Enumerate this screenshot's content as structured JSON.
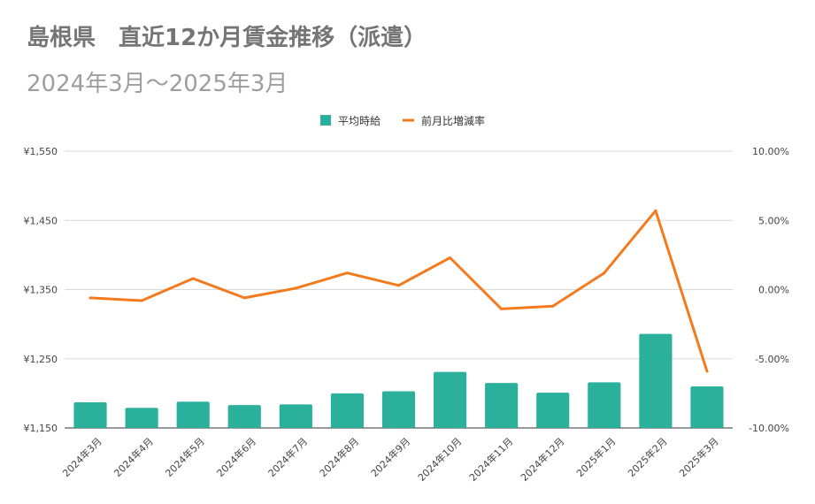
{
  "title": "島根県　直近12か月賃金推移（派遣）",
  "subtitle": "2024年3月～2025年3月",
  "colors": {
    "bar": "#2bb09c",
    "line": "#f37b1d",
    "grid": "#d9d9d9"
  },
  "chart_data": {
    "type": "bar+line",
    "categories": [
      "2024年3月",
      "2024年4月",
      "2024年5月",
      "2024年6月",
      "2024年7月",
      "2024年8月",
      "2024年9月",
      "2024年10月",
      "2024年11月",
      "2024年12月",
      "2025年1月",
      "2025年2月",
      "2025年3月"
    ],
    "series": [
      {
        "name": "平均時給",
        "type": "bar",
        "axis": "left",
        "values": [
          1187,
          1179,
          1188,
          1183,
          1184,
          1200,
          1203,
          1231,
          1215,
          1201,
          1216,
          1286,
          1210
        ]
      },
      {
        "name": "前月比増減率",
        "type": "line",
        "axis": "right",
        "values": [
          -0.6,
          -0.8,
          0.8,
          -0.6,
          0.1,
          1.2,
          0.3,
          2.3,
          -1.4,
          -1.2,
          1.2,
          5.7,
          -5.9
        ]
      }
    ],
    "y_left": {
      "min": 1150,
      "max": 1550,
      "ticks": [
        "¥1,150",
        "¥1,250",
        "¥1,350",
        "¥1,450",
        "¥1,550"
      ],
      "tick_values": [
        1150,
        1250,
        1350,
        1450,
        1550
      ]
    },
    "y_right": {
      "min": -10,
      "max": 10,
      "ticks": [
        "-10.00%",
        "-5.00%",
        "0.00%",
        "5.00%",
        "10.00%"
      ],
      "tick_values": [
        -10,
        -5,
        0,
        5,
        10
      ]
    },
    "legend": [
      "平均時給",
      "前月比増減率"
    ],
    "legend_position": "top-center",
    "grid": true
  }
}
